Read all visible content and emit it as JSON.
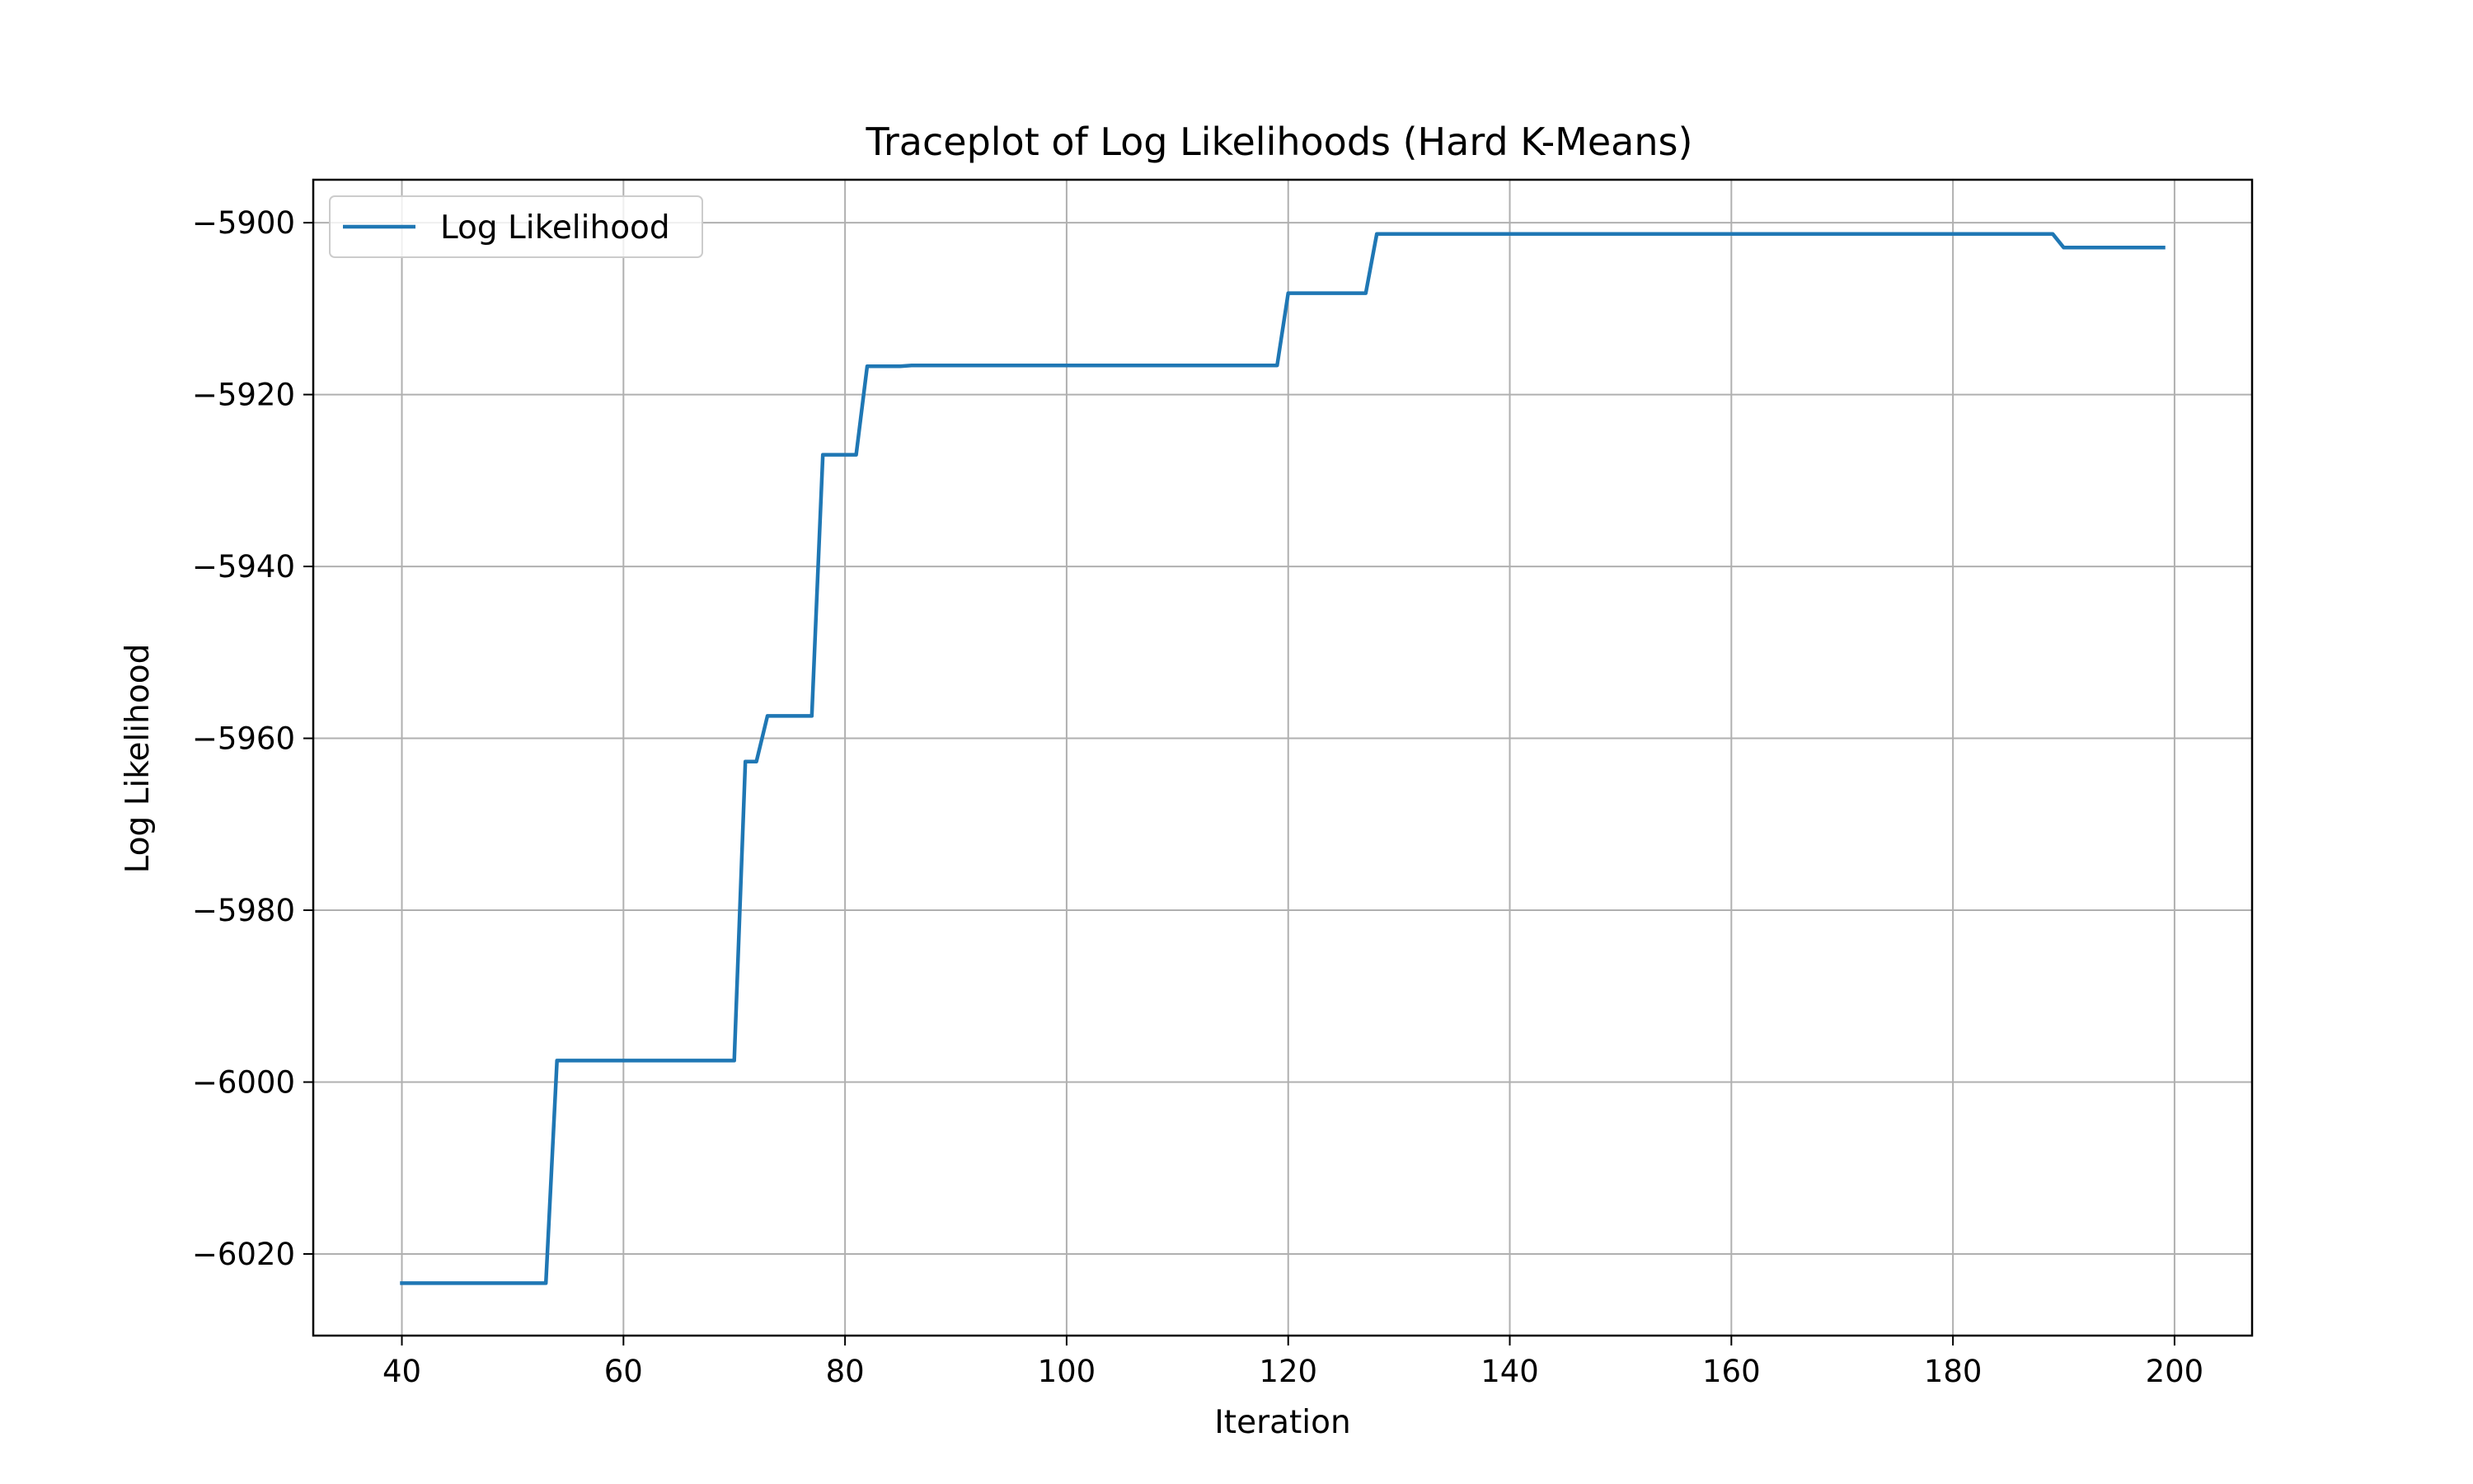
{
  "chart_data": {
    "type": "line",
    "title": "Traceplot of Log Likelihoods (Hard K-Means)",
    "xlabel": "Iteration",
    "ylabel": "Log Likelihood",
    "xlim": [
      32,
      207
    ],
    "ylim": [
      -6029.5,
      -5895
    ],
    "xticks": [
      40,
      60,
      80,
      100,
      120,
      140,
      160,
      180,
      200
    ],
    "yticks": [
      -6020,
      -6000,
      -5980,
      -5960,
      -5940,
      -5920,
      -5900
    ],
    "xtick_labels": [
      "40",
      "60",
      "80",
      "100",
      "120",
      "140",
      "160",
      "180",
      "200"
    ],
    "ytick_labels": [
      "−6020",
      "−6000",
      "−5980",
      "−5960",
      "−5940",
      "−5920",
      "−5900"
    ],
    "grid": true,
    "legend_position": "upper-left",
    "series": [
      {
        "name": "Log Likelihood",
        "color": "#1f77b4",
        "x": [
          40,
          53,
          54,
          70,
          71,
          72,
          73,
          77,
          78,
          81,
          82,
          85,
          86,
          119,
          120,
          127,
          128,
          189,
          190,
          199
        ],
        "y": [
          -6023.4,
          -6023.4,
          -5997.5,
          -5997.5,
          -5962.7,
          -5962.7,
          -5957.4,
          -5957.4,
          -5927.0,
          -5927.0,
          -5916.7,
          -5916.7,
          -5916.6,
          -5916.6,
          -5908.2,
          -5908.2,
          -5901.3,
          -5901.3,
          -5902.9,
          -5902.9
        ]
      }
    ]
  }
}
